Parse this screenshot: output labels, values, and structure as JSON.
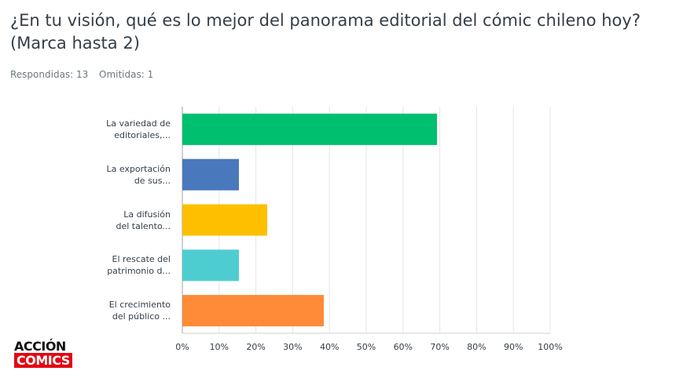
{
  "header": {
    "title": "¿En tu visión, qué es lo mejor del panorama editorial del cómic chileno hoy?\n(Marca hasta 2)",
    "answered": "Respondidas: 13",
    "skipped": "Omitidas: 1"
  },
  "logo": {
    "top": "ACCIÓN",
    "bottom": "COMICS"
  },
  "chart_data": {
    "type": "hbar",
    "categories": [
      "La variedad de\neditoriales,...",
      "La exportación\nde sus...",
      "La difusión\ndel talento...",
      "El rescate del\npatrimonio d...",
      "El crecimiento\ndel público ..."
    ],
    "values": [
      69.23,
      15.38,
      23.08,
      15.38,
      38.46
    ],
    "colors": [
      "#00bf6f",
      "#4a78bd",
      "#fdbf00",
      "#4ecdd1",
      "#ff8b38"
    ],
    "xlim": [
      0,
      100
    ],
    "xticks": [
      {
        "value": 0,
        "label": "0%"
      },
      {
        "value": 10,
        "label": "10%"
      },
      {
        "value": 20,
        "label": "20%"
      },
      {
        "value": 30,
        "label": "30%"
      },
      {
        "value": 40,
        "label": "40%"
      },
      {
        "value": 50,
        "label": "50%"
      },
      {
        "value": 60,
        "label": "60%"
      },
      {
        "value": 70,
        "label": "70%"
      },
      {
        "value": 80,
        "label": "80%"
      },
      {
        "value": 90,
        "label": "90%"
      },
      {
        "value": 100,
        "label": "100%"
      }
    ],
    "grid": true
  }
}
